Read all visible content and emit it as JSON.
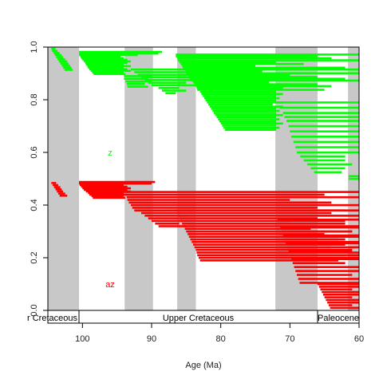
{
  "chart_data": {
    "type": "range-chart",
    "xlabel": "Age (Ma)",
    "xlim": [
      105,
      60
    ],
    "ylim": [
      0,
      1
    ],
    "x_ticks": [
      100,
      90,
      80,
      70,
      60
    ],
    "y_ticks": [
      0.0,
      0.2,
      0.4,
      0.6,
      0.8,
      1.0
    ],
    "y_tick_labels": [
      "0.0",
      "0.2",
      "0.4",
      "0.6",
      "0.8",
      "1.0"
    ],
    "colors": {
      "green": "#00ff00",
      "red": "#ff0000",
      "shade": "#c8c8c8"
    },
    "shaded_intervals": [
      [
        105,
        100.5
      ],
      [
        93.9,
        89.8
      ],
      [
        86.3,
        83.6
      ],
      [
        72.1,
        66.0
      ],
      [
        61.6,
        60
      ]
    ],
    "epochs": [
      {
        "label": "r Cretaceous",
        "start": 105,
        "end": 100.5
      },
      {
        "label": "Upper Cretaceous",
        "start": 100.5,
        "end": 66.0
      },
      {
        "label": "Paleocene",
        "start": 66.0,
        "end": 60
      }
    ],
    "annotations": [
      {
        "text": "z",
        "x": 96,
        "y": 0.6,
        "color": "#00ff00"
      },
      {
        "text": "az",
        "x": 96,
        "y": 0.1,
        "color": "#ff0000"
      }
    ],
    "series": [
      {
        "color": "#00ff00",
        "ranges": [
          [
            104.5,
            103.9,
            0.994
          ],
          [
            104.4,
            103.6,
            0.986
          ],
          [
            104.2,
            103.3,
            0.978
          ],
          [
            104.0,
            103.0,
            0.97
          ],
          [
            103.8,
            102.8,
            0.962
          ],
          [
            103.6,
            102.5,
            0.954
          ],
          [
            103.4,
            102.2,
            0.946
          ],
          [
            103.2,
            102.0,
            0.938
          ],
          [
            103.0,
            101.8,
            0.93
          ],
          [
            102.8,
            101.6,
            0.922
          ],
          [
            102.6,
            101.4,
            0.914
          ],
          [
            100.5,
            88.5,
            0.982
          ],
          [
            100.5,
            89.0,
            0.976
          ],
          [
            100.5,
            92.0,
            0.97
          ],
          [
            100.3,
            94.5,
            0.964
          ],
          [
            100.2,
            94.0,
            0.958
          ],
          [
            100.0,
            93.5,
            0.952
          ],
          [
            99.8,
            93.0,
            0.946
          ],
          [
            99.6,
            93.5,
            0.94
          ],
          [
            99.5,
            94.0,
            0.934
          ],
          [
            99.3,
            93.0,
            0.928
          ],
          [
            99.2,
            94.0,
            0.922
          ],
          [
            99.0,
            93.5,
            0.916
          ],
          [
            98.8,
            93.0,
            0.91
          ],
          [
            98.6,
            94.0,
            0.904
          ],
          [
            98.4,
            93.8,
            0.898
          ],
          [
            94.0,
            90.0,
            0.89
          ],
          [
            94.0,
            90.5,
            0.88
          ],
          [
            93.8,
            90.0,
            0.87
          ],
          [
            93.6,
            91.0,
            0.86
          ],
          [
            93.5,
            90.5,
            0.85
          ],
          [
            93.0,
            60.0,
            0.915
          ],
          [
            92.5,
            75.0,
            0.905
          ],
          [
            92.0,
            80.0,
            0.895
          ],
          [
            91.5,
            70.0,
            0.885
          ],
          [
            91.0,
            66.0,
            0.875
          ],
          [
            90.5,
            85.0,
            0.865
          ],
          [
            90.0,
            72.0,
            0.855
          ],
          [
            89.0,
            86.0,
            0.845
          ],
          [
            88.5,
            85.0,
            0.835
          ],
          [
            88.0,
            86.5,
            0.825
          ],
          [
            86.5,
            60.0,
            0.972
          ],
          [
            86.5,
            66.0,
            0.965
          ],
          [
            86.3,
            64.0,
            0.958
          ],
          [
            86.2,
            60.0,
            0.95
          ],
          [
            86.0,
            72.0,
            0.943
          ],
          [
            85.8,
            68.0,
            0.936
          ],
          [
            85.6,
            75.0,
            0.929
          ],
          [
            85.5,
            62.0,
            0.922
          ],
          [
            85.3,
            70.0,
            0.915
          ],
          [
            85.1,
            74.0,
            0.908
          ],
          [
            85.0,
            60.0,
            0.901
          ],
          [
            84.8,
            70.0,
            0.894
          ],
          [
            84.6,
            66.0,
            0.887
          ],
          [
            84.5,
            62.0,
            0.88
          ],
          [
            84.3,
            60.0,
            0.873
          ],
          [
            84.0,
            73.0,
            0.866
          ],
          [
            83.8,
            66.0,
            0.859
          ],
          [
            83.6,
            64.0,
            0.852
          ],
          [
            83.5,
            71.0,
            0.845
          ],
          [
            83.4,
            65.0,
            0.838
          ],
          [
            83.0,
            72.0,
            0.83
          ],
          [
            82.8,
            71.0,
            0.822
          ],
          [
            82.6,
            72.0,
            0.814
          ],
          [
            82.4,
            71.5,
            0.806
          ],
          [
            82.2,
            72.0,
            0.798
          ],
          [
            82.0,
            71.0,
            0.79
          ],
          [
            81.8,
            72.5,
            0.782
          ],
          [
            81.6,
            71.0,
            0.774
          ],
          [
            81.4,
            72.0,
            0.766
          ],
          [
            81.2,
            71.5,
            0.758
          ],
          [
            81.0,
            72.0,
            0.75
          ],
          [
            80.8,
            71.0,
            0.742
          ],
          [
            80.6,
            72.0,
            0.734
          ],
          [
            80.4,
            71.5,
            0.726
          ],
          [
            80.2,
            72.0,
            0.718
          ],
          [
            80.0,
            71.0,
            0.71
          ],
          [
            79.8,
            72.0,
            0.702
          ],
          [
            79.6,
            71.5,
            0.694
          ],
          [
            79.4,
            72.0,
            0.686
          ],
          [
            72.0,
            60.0,
            0.79
          ],
          [
            71.5,
            60.0,
            0.77
          ],
          [
            71.0,
            60.0,
            0.75
          ],
          [
            70.8,
            60.0,
            0.735
          ],
          [
            70.5,
            60.0,
            0.72
          ],
          [
            70.2,
            60.0,
            0.7
          ],
          [
            70.0,
            60.0,
            0.68
          ],
          [
            69.8,
            60.0,
            0.66
          ],
          [
            69.5,
            60.0,
            0.64
          ],
          [
            69.2,
            60.0,
            0.62
          ],
          [
            69.0,
            60.0,
            0.6
          ],
          [
            68.5,
            62.0,
            0.585
          ],
          [
            68.0,
            62.0,
            0.57
          ],
          [
            67.5,
            61.0,
            0.555
          ],
          [
            67.0,
            62.0,
            0.54
          ],
          [
            66.5,
            62.5,
            0.525
          ],
          [
            61.5,
            60.0,
            0.51
          ],
          [
            61.5,
            60.0,
            0.5
          ]
        ]
      },
      {
        "color": "#ff0000",
        "ranges": [
          [
            104.5,
            103.8,
            0.484
          ],
          [
            104.3,
            103.5,
            0.476
          ],
          [
            104.1,
            103.2,
            0.468
          ],
          [
            103.9,
            103.0,
            0.46
          ],
          [
            103.7,
            102.8,
            0.452
          ],
          [
            103.5,
            102.5,
            0.444
          ],
          [
            103.3,
            102.2,
            0.436
          ],
          [
            100.5,
            89.5,
            0.488
          ],
          [
            100.5,
            90.0,
            0.482
          ],
          [
            100.4,
            94.0,
            0.476
          ],
          [
            100.2,
            93.5,
            0.47
          ],
          [
            100.0,
            93.0,
            0.464
          ],
          [
            99.8,
            93.5,
            0.458
          ],
          [
            99.5,
            93.0,
            0.452
          ],
          [
            99.2,
            94.0,
            0.446
          ],
          [
            99.0,
            93.5,
            0.44
          ],
          [
            98.7,
            94.0,
            0.434
          ],
          [
            98.5,
            93.8,
            0.428
          ],
          [
            94.0,
            60.0,
            0.45
          ],
          [
            93.8,
            65.0,
            0.44
          ],
          [
            93.6,
            60.0,
            0.43
          ],
          [
            93.5,
            70.0,
            0.42
          ],
          [
            93.3,
            64.0,
            0.41
          ],
          [
            93.0,
            60.0,
            0.4
          ],
          [
            92.8,
            66.0,
            0.39
          ],
          [
            92.5,
            62.0,
            0.38
          ],
          [
            91.5,
            86.0,
            0.37
          ],
          [
            91.0,
            85.0,
            0.36
          ],
          [
            90.5,
            86.0,
            0.35
          ],
          [
            90.0,
            85.5,
            0.34
          ],
          [
            89.5,
            86.0,
            0.33
          ],
          [
            89.0,
            85.0,
            0.32
          ],
          [
            86.5,
            60.0,
            0.38
          ],
          [
            86.3,
            64.0,
            0.37
          ],
          [
            86.1,
            60.0,
            0.36
          ],
          [
            86.0,
            66.0,
            0.35
          ],
          [
            85.8,
            62.0,
            0.34
          ],
          [
            85.6,
            70.0,
            0.33
          ],
          [
            85.4,
            60.0,
            0.32
          ],
          [
            85.2,
            67.0,
            0.31
          ],
          [
            85.0,
            61.0,
            0.3
          ],
          [
            84.8,
            65.0,
            0.29
          ],
          [
            84.6,
            60.0,
            0.28
          ],
          [
            84.4,
            63.0,
            0.27
          ],
          [
            84.2,
            60.0,
            0.26
          ],
          [
            84.0,
            62.0,
            0.25
          ],
          [
            83.8,
            64.0,
            0.24
          ],
          [
            83.6,
            61.0,
            0.23
          ],
          [
            83.5,
            60.0,
            0.22
          ],
          [
            83.4,
            62.0,
            0.21
          ],
          [
            83.2,
            60.0,
            0.2
          ],
          [
            83.0,
            63.0,
            0.19
          ],
          [
            72.0,
            60.0,
            0.36
          ],
          [
            71.8,
            60.0,
            0.345
          ],
          [
            71.6,
            62.0,
            0.33
          ],
          [
            71.4,
            60.0,
            0.315
          ],
          [
            71.2,
            61.0,
            0.3
          ],
          [
            71.0,
            60.0,
            0.285
          ],
          [
            70.8,
            62.0,
            0.27
          ],
          [
            70.6,
            60.0,
            0.255
          ],
          [
            70.4,
            60.0,
            0.24
          ],
          [
            70.2,
            61.0,
            0.225
          ],
          [
            70.0,
            60.0,
            0.21
          ],
          [
            69.8,
            60.0,
            0.195
          ],
          [
            69.6,
            62.0,
            0.18
          ],
          [
            69.4,
            60.0,
            0.165
          ],
          [
            69.2,
            60.0,
            0.15
          ],
          [
            69.0,
            61.0,
            0.135
          ],
          [
            68.8,
            60.0,
            0.12
          ],
          [
            68.6,
            60.0,
            0.105
          ],
          [
            66.0,
            60.0,
            0.1
          ],
          [
            65.8,
            60.0,
            0.09
          ],
          [
            65.6,
            61.0,
            0.08
          ],
          [
            65.4,
            60.0,
            0.07
          ],
          [
            65.2,
            60.0,
            0.06
          ],
          [
            65.0,
            61.0,
            0.05
          ],
          [
            64.8,
            60.0,
            0.04
          ],
          [
            64.6,
            60.0,
            0.03
          ],
          [
            64.4,
            61.0,
            0.02
          ],
          [
            64.2,
            60.0,
            0.01
          ]
        ]
      }
    ]
  }
}
